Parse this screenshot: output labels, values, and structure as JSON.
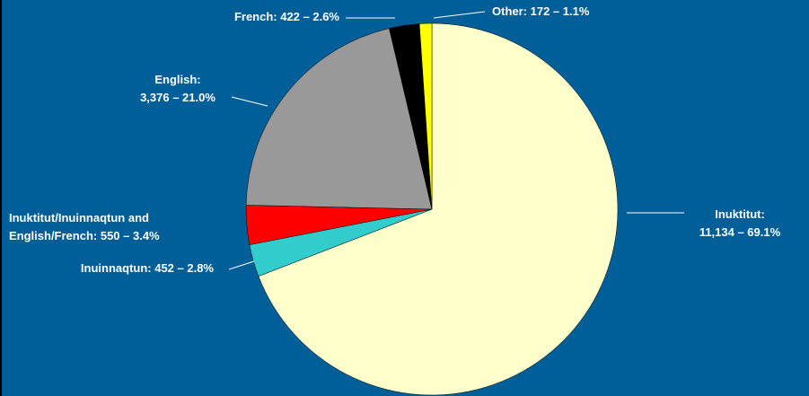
{
  "chart_data": {
    "type": "pie",
    "labels": [
      "Inuktitut:\n11,134 – 69.1%",
      "Inuinnaqtun: 452 – 2.8%",
      "Inuktitut/Inuinnaqtun and\nEnglish/French: 550 – 3.4%",
      "English:\n3,376 – 21.0%",
      "French: 422 – 2.6%",
      "Other: 172 – 1.1%"
    ],
    "values": [
      11134,
      452,
      550,
      3376,
      422,
      172
    ],
    "colors": [
      "#ffffcc",
      "#33cccc",
      "#ff0000",
      "#999999",
      "#000000",
      "#ffff00"
    ]
  }
}
